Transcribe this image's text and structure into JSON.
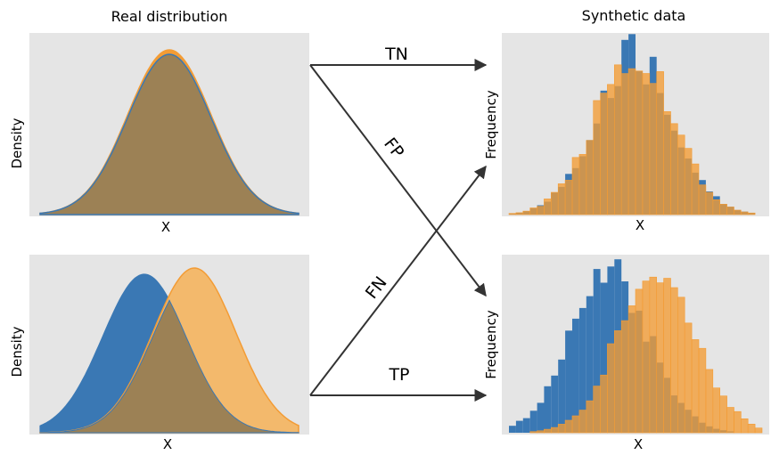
{
  "headers": {
    "left": "Real distribution",
    "right": "Synthetic data"
  },
  "axis_labels": {
    "density": "Density",
    "frequency": "Frequency",
    "x": "X"
  },
  "arrow_labels": {
    "tn": "TN",
    "fp": "FP",
    "fn": "FN",
    "tp": "TP"
  },
  "colors": {
    "panel_bg": "#e5e5e5",
    "blue": "#3a78b4",
    "orange": "#f39c35",
    "overlap": "#9c8155",
    "arrow": "#333333"
  },
  "chart_data": [
    {
      "type": "area",
      "panel": "real-top",
      "series": [
        {
          "color": "blue",
          "mean": 0.0,
          "sd": 1.0
        },
        {
          "color": "orange",
          "mean": 0.0,
          "sd": 1.0
        }
      ]
    },
    {
      "type": "area",
      "panel": "real-bottom",
      "series": [
        {
          "color": "blue",
          "mean": -0.6,
          "sd": 1.0
        },
        {
          "color": "orange",
          "mean": 0.6,
          "sd": 1.0
        }
      ]
    },
    {
      "type": "bar",
      "panel": "synthetic-top",
      "series": [
        {
          "color": "blue",
          "mean": 0.0,
          "sd": 1.0,
          "n": 1000
        },
        {
          "color": "orange",
          "mean": 0.0,
          "sd": 1.0,
          "n": 1000
        }
      ]
    },
    {
      "type": "bar",
      "panel": "synthetic-bottom",
      "series": [
        {
          "color": "blue",
          "mean": -0.6,
          "sd": 1.0,
          "n": 1000
        },
        {
          "color": "orange",
          "mean": 0.6,
          "sd": 1.0,
          "n": 1000
        }
      ]
    }
  ]
}
